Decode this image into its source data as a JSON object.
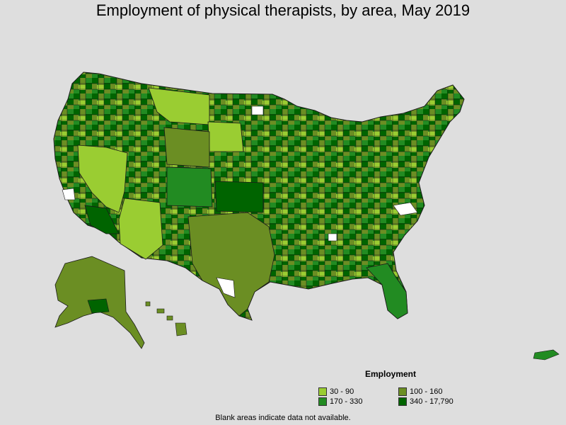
{
  "title": "Employment of physical therapists, by area, May 2019",
  "legend": {
    "title": "Employment",
    "items": [
      {
        "label": "30 - 90",
        "color": "#9acd32"
      },
      {
        "label": "100 - 160",
        "color": "#6b8e23"
      },
      {
        "label": "170 - 330",
        "color": "#228b22"
      },
      {
        "label": "340 - 17,790",
        "color": "#006400"
      }
    ]
  },
  "footnote": "Blank areas indicate data not available.",
  "colors": {
    "background": "#dedede",
    "border": "#1a1a1a",
    "no_data": "#ffffff"
  }
}
